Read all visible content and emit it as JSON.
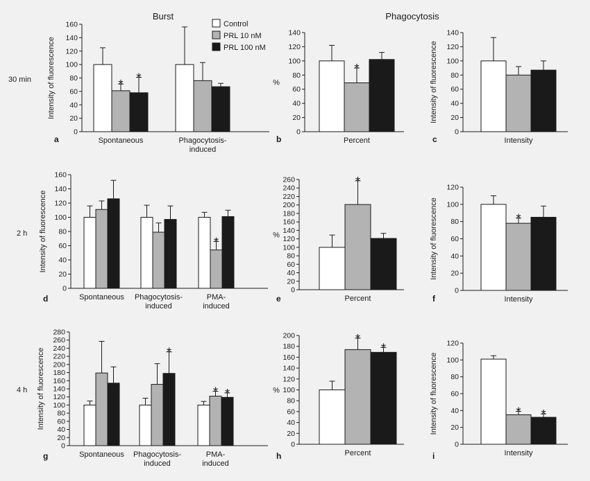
{
  "figure": {
    "header_left": "Burst",
    "header_right": "Phagocytosis",
    "row_labels": [
      "30 min",
      "2 h",
      "4 h"
    ]
  },
  "legend": {
    "placement": "top, between Burst panel a and panel b",
    "entries": [
      {
        "label": "Control",
        "color": "#ffffff"
      },
      {
        "label": "PRL 10 nM",
        "color": "#b3b3b3"
      },
      {
        "label": "PRL 100 nM",
        "color": "#1a1a1a"
      }
    ]
  },
  "chart_data": [
    {
      "type": "bar",
      "panel": "a",
      "ylabel": "Intensity of fluorescence",
      "ylim": [
        0,
        160
      ],
      "yticks": [
        0,
        20,
        40,
        60,
        80,
        100,
        120,
        140,
        160
      ],
      "categories": [
        [
          "Spontaneous"
        ],
        [
          "Phagocytosis-",
          "induced"
        ]
      ],
      "series": [
        {
          "name": "Control",
          "values": [
            100,
            100
          ],
          "errors": [
            25,
            56
          ],
          "sig": [
            false,
            false
          ]
        },
        {
          "name": "PRL 10 nM",
          "values": [
            61,
            76
          ],
          "errors": [
            10,
            27
          ],
          "sig": [
            true,
            false
          ]
        },
        {
          "name": "PRL 100 nM",
          "values": [
            58,
            67
          ],
          "errors": [
            23,
            5
          ],
          "sig": [
            true,
            false
          ]
        }
      ]
    },
    {
      "type": "bar",
      "panel": "b",
      "ylabel": "%",
      "ylim": [
        0,
        140
      ],
      "yticks": [
        0,
        20,
        40,
        60,
        80,
        100,
        120,
        140
      ],
      "categories": [
        [
          "Percent"
        ]
      ],
      "series": [
        {
          "name": "Control",
          "values": [
            100
          ],
          "errors": [
            22
          ],
          "sig": [
            false
          ]
        },
        {
          "name": "PRL 10 nM",
          "values": [
            69
          ],
          "errors": [
            21
          ],
          "sig": [
            true
          ]
        },
        {
          "name": "PRL 100 nM",
          "values": [
            102
          ],
          "errors": [
            10
          ],
          "sig": [
            false
          ]
        }
      ]
    },
    {
      "type": "bar",
      "panel": "c",
      "ylabel": "Intensity of fluorescence",
      "ylim": [
        0,
        140
      ],
      "yticks": [
        0,
        20,
        40,
        60,
        80,
        100,
        120,
        140
      ],
      "categories": [
        [
          "Intensity"
        ]
      ],
      "series": [
        {
          "name": "Control",
          "values": [
            100
          ],
          "errors": [
            33
          ],
          "sig": [
            false
          ]
        },
        {
          "name": "PRL 10 nM",
          "values": [
            80
          ],
          "errors": [
            12
          ],
          "sig": [
            false
          ]
        },
        {
          "name": "PRL 100 nM",
          "values": [
            87
          ],
          "errors": [
            13
          ],
          "sig": [
            false
          ]
        }
      ]
    },
    {
      "type": "bar",
      "panel": "d",
      "ylabel": "Intensity of fluorescence",
      "ylim": [
        0,
        160
      ],
      "yticks": [
        0,
        20,
        40,
        60,
        80,
        100,
        120,
        140,
        160
      ],
      "categories": [
        [
          "Spontaneous"
        ],
        [
          "Phagocytosis-",
          "induced"
        ],
        [
          "PMA-",
          "induced"
        ]
      ],
      "series": [
        {
          "name": "Control",
          "values": [
            100,
            100,
            100
          ],
          "errors": [
            16,
            17,
            7
          ],
          "sig": [
            false,
            false,
            false
          ]
        },
        {
          "name": "PRL 10 nM",
          "values": [
            111,
            79,
            54
          ],
          "errors": [
            12,
            13,
            12
          ],
          "sig": [
            false,
            false,
            true
          ]
        },
        {
          "name": "PRL 100 nM",
          "values": [
            126,
            97,
            101
          ],
          "errors": [
            26,
            19,
            9
          ],
          "sig": [
            false,
            false,
            false
          ]
        }
      ]
    },
    {
      "type": "bar",
      "panel": "e",
      "ylabel": "%",
      "ylim": [
        0,
        260
      ],
      "yticks": [
        0,
        20,
        40,
        60,
        80,
        100,
        120,
        140,
        160,
        180,
        200,
        220,
        240,
        260
      ],
      "categories": [
        [
          "Percent"
        ]
      ],
      "series": [
        {
          "name": "Control",
          "values": [
            100
          ],
          "errors": [
            29
          ],
          "sig": [
            false
          ]
        },
        {
          "name": "PRL 10 nM",
          "values": [
            201
          ],
          "errors": [
            56
          ],
          "sig": [
            true
          ]
        },
        {
          "name": "PRL 100 nM",
          "values": [
            121
          ],
          "errors": [
            12
          ],
          "sig": [
            false
          ]
        }
      ]
    },
    {
      "type": "bar",
      "panel": "f",
      "ylabel": "Intensity of fluorescence",
      "ylim": [
        0,
        120
      ],
      "yticks": [
        0,
        20,
        40,
        60,
        80,
        100,
        120
      ],
      "categories": [
        [
          "Intensity"
        ]
      ],
      "series": [
        {
          "name": "Control",
          "values": [
            100
          ],
          "errors": [
            10
          ],
          "sig": [
            false
          ]
        },
        {
          "name": "PRL 10 nM",
          "values": [
            78
          ],
          "errors": [
            6
          ],
          "sig": [
            true
          ]
        },
        {
          "name": "PRL 100 nM",
          "values": [
            85
          ],
          "errors": [
            13
          ],
          "sig": [
            false
          ]
        }
      ]
    },
    {
      "type": "bar",
      "panel": "g",
      "ylabel": "Intensity of fluorescence",
      "ylim": [
        0,
        280
      ],
      "yticks": [
        0,
        20,
        40,
        60,
        80,
        100,
        120,
        140,
        160,
        180,
        200,
        220,
        240,
        260,
        280
      ],
      "categories": [
        [
          "Spontaneous"
        ],
        [
          "Phagocytosis-",
          "induced"
        ],
        [
          "PMA-",
          "induced"
        ]
      ],
      "series": [
        {
          "name": "Control",
          "values": [
            100,
            100,
            100
          ],
          "errors": [
            10,
            17,
            9
          ],
          "sig": [
            false,
            false,
            false
          ]
        },
        {
          "name": "PRL 10 nM",
          "values": [
            179,
            151,
            122
          ],
          "errors": [
            78,
            51,
            12
          ],
          "sig": [
            false,
            false,
            true
          ]
        },
        {
          "name": "PRL 100 nM",
          "values": [
            154,
            178,
            119
          ],
          "errors": [
            40,
            53,
            11
          ],
          "sig": [
            false,
            true,
            true
          ]
        }
      ]
    },
    {
      "type": "bar",
      "panel": "h",
      "ylabel": "%",
      "ylim": [
        0,
        200
      ],
      "yticks": [
        0,
        20,
        40,
        60,
        80,
        100,
        120,
        140,
        160,
        180,
        200
      ],
      "categories": [
        [
          "Percent"
        ]
      ],
      "series": [
        {
          "name": "Control",
          "values": [
            100
          ],
          "errors": [
            16
          ],
          "sig": [
            false
          ]
        },
        {
          "name": "PRL 10 nM",
          "values": [
            174
          ],
          "errors": [
            21
          ],
          "sig": [
            true
          ]
        },
        {
          "name": "PRL 100 nM",
          "values": [
            169
          ],
          "errors": [
            9
          ],
          "sig": [
            true
          ]
        }
      ]
    },
    {
      "type": "bar",
      "panel": "i",
      "ylabel": "Intensity of fluorescence",
      "ylim": [
        0,
        120
      ],
      "yticks": [
        0,
        20,
        40,
        60,
        80,
        100,
        120
      ],
      "categories": [
        [
          "Intensity"
        ]
      ],
      "series": [
        {
          "name": "Control",
          "values": [
            101
          ],
          "errors": [
            4
          ],
          "sig": [
            false
          ]
        },
        {
          "name": "PRL 10 nM",
          "values": [
            35
          ],
          "errors": [
            4
          ],
          "sig": [
            true
          ]
        },
        {
          "name": "PRL 100 nM",
          "values": [
            32
          ],
          "errors": [
            4
          ],
          "sig": [
            true
          ]
        }
      ]
    }
  ]
}
